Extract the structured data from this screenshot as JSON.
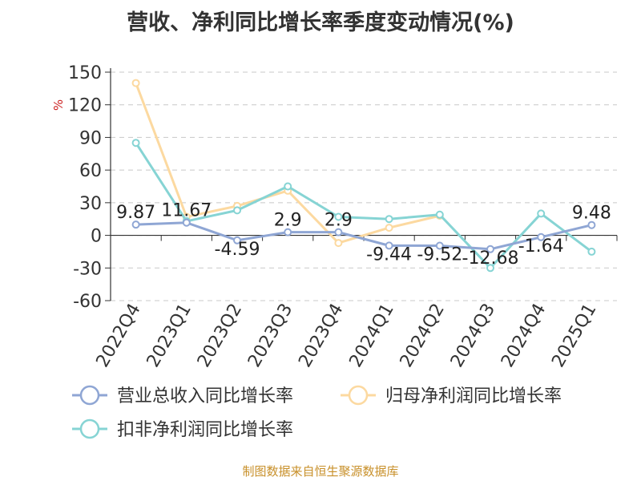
{
  "chart_data": {
    "type": "line",
    "title": "营收、净利同比增长率季度变动情况(%)",
    "ylabel": "%",
    "xlabel": "",
    "ylim": [
      -60,
      150
    ],
    "yticks": [
      150,
      120,
      90,
      60,
      30,
      0,
      -30,
      -60
    ],
    "grid": true,
    "legend_position": "bottom",
    "categories": [
      "2022Q4",
      "2023Q1",
      "2023Q2",
      "2023Q3",
      "2023Q4",
      "2024Q1",
      "2024Q2",
      "2024Q3",
      "2024Q4",
      "2025Q1"
    ],
    "series": [
      {
        "name": "营业总收入同比增长率",
        "color": "#8fa6d4",
        "values": [
          9.87,
          11.67,
          -4.59,
          2.9,
          2.9,
          -9.44,
          -9.52,
          -12.68,
          -1.64,
          9.48
        ],
        "labels": [
          "9.87",
          "11.67",
          "-4.59",
          "2.9",
          "2.9",
          "-9.44",
          "-9.52",
          "-12.68",
          "-1.64",
          "9.48"
        ]
      },
      {
        "name": "归母净利润同比增长率",
        "color": "#fcd9a0",
        "values": [
          140,
          17,
          27,
          41,
          -7,
          7,
          18,
          null,
          null,
          null
        ]
      },
      {
        "name": "扣非净利润同比增长率",
        "color": "#86d4d4",
        "values": [
          85,
          13,
          23,
          45,
          17,
          15,
          19,
          -30,
          20,
          -15
        ]
      }
    ]
  },
  "source": "制图数据来自恒生聚源数据库"
}
